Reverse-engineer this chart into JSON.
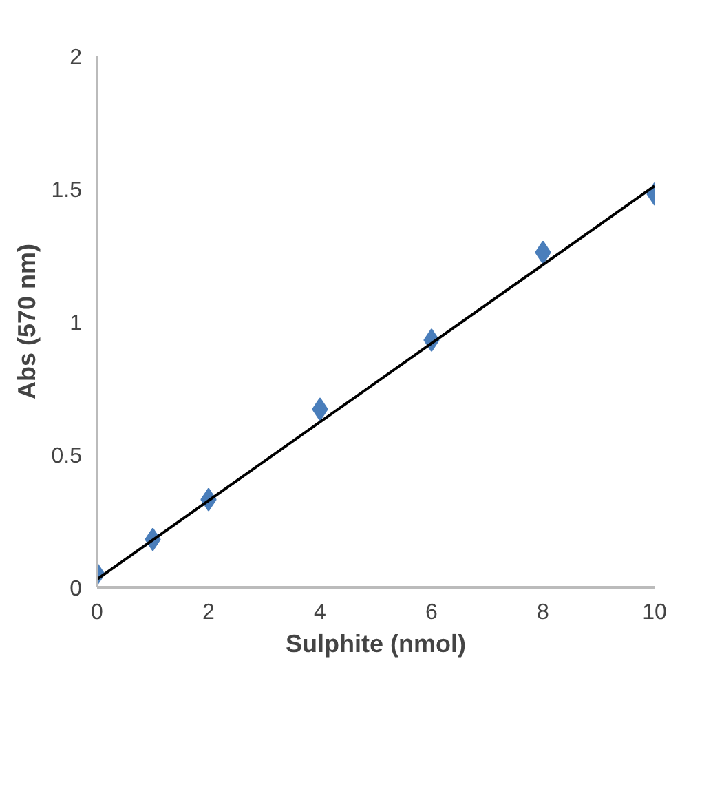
{
  "chart_data": {
    "type": "scatter",
    "xlabel": "Sulphite (nmol)",
    "ylabel": "Abs (570 nm)",
    "xlim": [
      0,
      10
    ],
    "ylim": [
      0,
      2
    ],
    "xticks": [
      0,
      2,
      4,
      6,
      8,
      10
    ],
    "yticks": [
      0,
      0.5,
      1,
      1.5,
      2
    ],
    "grid": false,
    "marker": "diamond",
    "series": [
      {
        "color": "#4a7ebb",
        "x": [
          0,
          1,
          2,
          4,
          6,
          8,
          10
        ],
        "values": [
          0.05,
          0.18,
          0.33,
          0.67,
          0.93,
          1.26,
          1.48
        ]
      },
      {
        "type": "line",
        "color": "#000000",
        "x": [
          0,
          10
        ],
        "values": [
          0.03,
          1.51
        ],
        "marker": "none"
      }
    ]
  }
}
